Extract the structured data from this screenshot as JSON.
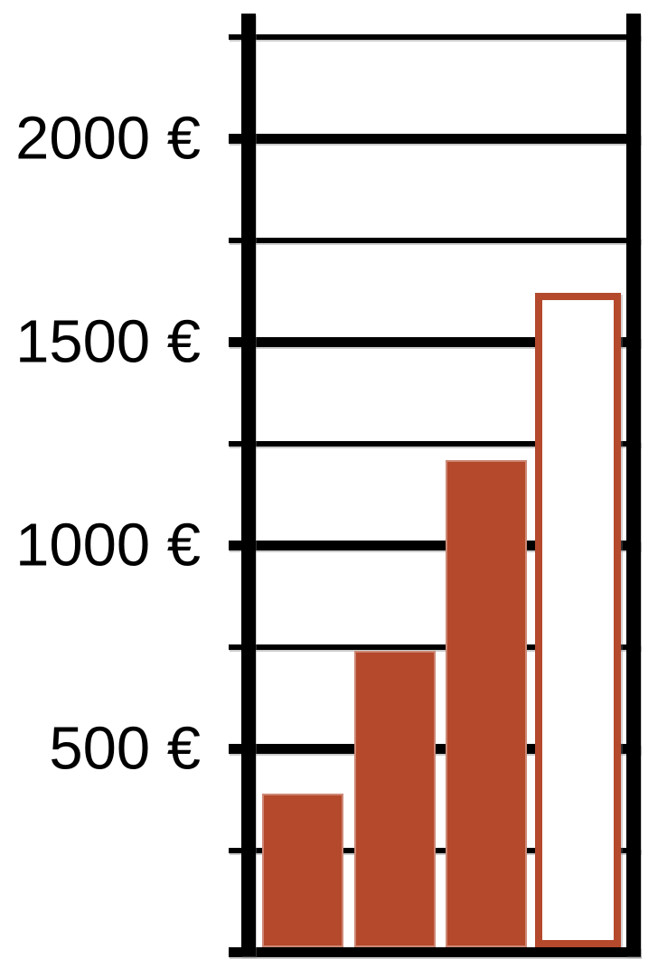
{
  "chart_data": {
    "type": "bar",
    "title": "",
    "values": [
      390,
      740,
      1210,
      1620
    ],
    "bar_styles": [
      "filled",
      "filled",
      "filled",
      "outlined"
    ],
    "y_axis": {
      "unit": "€",
      "tick_labels": [
        "2000 €",
        "1500 €",
        "1000 €",
        "500 €"
      ],
      "tick_values": [
        2000,
        1500,
        1000,
        500
      ],
      "minor_tick_values": [
        2250,
        1750,
        1250,
        750,
        250
      ],
      "ylim": [
        0,
        2250
      ],
      "major_interval": 500,
      "minor_interval": 250
    },
    "x_axis": {
      "tick_labels": []
    },
    "legend": false,
    "grid": true,
    "colors": {
      "bar_fill": "#B4492C",
      "bar_outline": "#B4492C",
      "axis": "#000000",
      "background": "#FFFFFF"
    }
  }
}
